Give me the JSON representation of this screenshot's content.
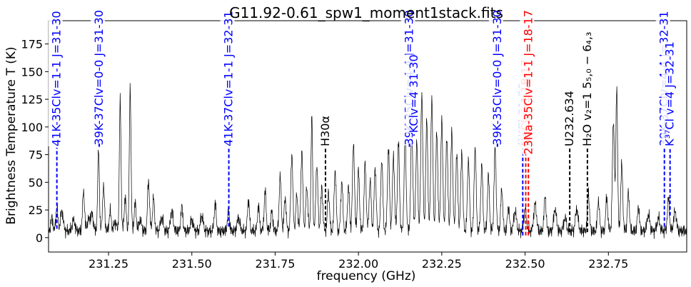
{
  "chart_data": {
    "type": "line",
    "title": "G11.92-0.61_spw1_moment1stack.fits",
    "xlabel": "frequency (GHz)",
    "ylabel": "Brightness Temperature T (K)",
    "xlim": [
      231.07,
      232.985
    ],
    "ylim": [
      -13,
      196
    ],
    "xticks": [
      231.25,
      231.5,
      231.75,
      232.0,
      232.25,
      232.5,
      232.75
    ],
    "xtick_labels": [
      "231.25",
      "231.50",
      "231.75",
      "232.00",
      "232.25",
      "232.50",
      "232.75"
    ],
    "yticks": [
      0,
      25,
      50,
      75,
      100,
      125,
      150,
      175
    ],
    "ytick_labels": [
      "0",
      "25",
      "50",
      "75",
      "100",
      "125",
      "150",
      "175"
    ],
    "grid": false,
    "series": [
      {
        "color": "#000000",
        "baseline": 6,
        "peaks": [
          [
            231.08,
            12,
            0.003
          ],
          [
            231.095,
            22,
            0.003
          ],
          [
            231.11,
            18,
            0.004
          ],
          [
            231.145,
            10,
            0.004
          ],
          [
            231.175,
            36,
            0.003
          ],
          [
            231.19,
            10,
            0.004
          ],
          [
            231.2,
            15,
            0.004
          ],
          [
            231.22,
            74,
            0.0025
          ],
          [
            231.235,
            40,
            0.003
          ],
          [
            231.255,
            18,
            0.003
          ],
          [
            231.27,
            8,
            0.004
          ],
          [
            231.285,
            118,
            0.0025
          ],
          [
            231.3,
            30,
            0.003
          ],
          [
            231.315,
            130,
            0.0025
          ],
          [
            231.33,
            25,
            0.003
          ],
          [
            231.345,
            10,
            0.004
          ],
          [
            231.37,
            45,
            0.003
          ],
          [
            231.385,
            30,
            0.003
          ],
          [
            231.41,
            12,
            0.004
          ],
          [
            231.44,
            18,
            0.004
          ],
          [
            231.47,
            22,
            0.003
          ],
          [
            231.5,
            10,
            0.004
          ],
          [
            231.53,
            14,
            0.004
          ],
          [
            231.57,
            25,
            0.003
          ],
          [
            231.61,
            18,
            0.003
          ],
          [
            231.64,
            12,
            0.004
          ],
          [
            231.67,
            28,
            0.003
          ],
          [
            231.7,
            22,
            0.003
          ],
          [
            231.72,
            36,
            0.003
          ],
          [
            231.74,
            18,
            0.003
          ],
          [
            231.765,
            50,
            0.003
          ],
          [
            231.78,
            30,
            0.003
          ],
          [
            231.8,
            70,
            0.003
          ],
          [
            231.815,
            32,
            0.003
          ],
          [
            231.83,
            72,
            0.003
          ],
          [
            231.845,
            40,
            0.003
          ],
          [
            231.86,
            103,
            0.0025
          ],
          [
            231.875,
            60,
            0.003
          ],
          [
            231.89,
            40,
            0.003
          ],
          [
            231.91,
            36,
            0.003
          ],
          [
            231.93,
            55,
            0.003
          ],
          [
            231.95,
            45,
            0.003
          ],
          [
            231.97,
            40,
            0.003
          ],
          [
            231.985,
            80,
            0.003
          ],
          [
            232.0,
            55,
            0.003
          ],
          [
            232.02,
            62,
            0.003
          ],
          [
            232.035,
            45,
            0.003
          ],
          [
            232.05,
            58,
            0.003
          ],
          [
            232.07,
            65,
            0.003
          ],
          [
            232.09,
            75,
            0.003
          ],
          [
            232.105,
            68,
            0.003
          ],
          [
            232.12,
            80,
            0.003
          ],
          [
            232.14,
            85,
            0.003
          ],
          [
            232.16,
            95,
            0.003
          ],
          [
            232.175,
            80,
            0.003
          ],
          [
            232.19,
            125,
            0.003
          ],
          [
            232.205,
            100,
            0.003
          ],
          [
            232.22,
            120,
            0.003
          ],
          [
            232.235,
            90,
            0.003
          ],
          [
            232.25,
            100,
            0.003
          ],
          [
            232.265,
            85,
            0.003
          ],
          [
            232.28,
            90,
            0.003
          ],
          [
            232.295,
            70,
            0.003
          ],
          [
            232.31,
            72,
            0.003
          ],
          [
            232.33,
            65,
            0.003
          ],
          [
            232.35,
            75,
            0.003
          ],
          [
            232.37,
            60,
            0.003
          ],
          [
            232.39,
            50,
            0.003
          ],
          [
            232.41,
            75,
            0.003
          ],
          [
            232.43,
            38,
            0.003
          ],
          [
            232.45,
            22,
            0.003
          ],
          [
            232.47,
            18,
            0.004
          ],
          [
            232.5,
            20,
            0.004
          ],
          [
            232.53,
            25,
            0.004
          ],
          [
            232.56,
            32,
            0.003
          ],
          [
            232.59,
            20,
            0.004
          ],
          [
            232.62,
            12,
            0.004
          ],
          [
            232.655,
            20,
            0.004
          ],
          [
            232.69,
            35,
            0.003
          ],
          [
            232.72,
            28,
            0.003
          ],
          [
            232.745,
            30,
            0.003
          ],
          [
            232.765,
            100,
            0.003
          ],
          [
            232.775,
            132,
            0.0025
          ],
          [
            232.79,
            60,
            0.003
          ],
          [
            232.81,
            35,
            0.003
          ],
          [
            232.84,
            22,
            0.003
          ],
          [
            232.87,
            15,
            0.004
          ],
          [
            232.9,
            12,
            0.004
          ],
          [
            232.93,
            30,
            0.003
          ],
          [
            232.95,
            18,
            0.004
          ]
        ]
      }
    ],
    "line_ids": [
      {
        "label": "41K-35Clv=1-1 J=31-30",
        "x": 231.095,
        "y": 8,
        "color": "#0000ff"
      },
      {
        "label": "39K-37Clv=0-0 J=31-30",
        "x": 231.222,
        "y": 85,
        "color": "#0000ff"
      },
      {
        "label": "41K-37Clv=1-1 J=32-31",
        "x": 231.611,
        "y": 10,
        "color": "#0000ff"
      },
      {
        "label": "H30α",
        "x": 231.901,
        "y": 10,
        "color": "#000000"
      },
      {
        "label": "39K-35Clv=4-4 J=31-30",
        "x": 232.153,
        "y": 85,
        "color": "#0000ff"
      },
      {
        "label": "KClv=4 31-30",
        "x": 232.167,
        "y": 92,
        "color": "#0000ff"
      },
      {
        "label": "39K-35Clv=0-0 J=31-30",
        "x": 232.417,
        "y": 85,
        "color": "#0000ff"
      },
      {
        "label": "⁴¹KCl 31-30",
        "x": 232.493,
        "y": 2,
        "color": "#0000ff"
      },
      {
        "label": "NaClv=1 18-17",
        "x": 232.502,
        "y": 2,
        "color": "#ff0000"
      },
      {
        "label": "23Na-35Clv=1-1 J=18-17",
        "x": 232.51,
        "y": 2,
        "color": "#ff0000"
      },
      {
        "label": "U232.634",
        "x": 232.634,
        "y": 5,
        "color": "#000000"
      },
      {
        "label": "H₂O v₂=1 5₅,₀ − 6₄,₃",
        "x": 232.687,
        "y": 5,
        "color": "#000000"
      },
      {
        "label": "39K-37Clv=4-4 J=32-31",
        "x": 232.918,
        "y": 10,
        "color": "#0000ff"
      },
      {
        "label": "K³⁷Cl v=4 J=32-31",
        "x": 232.935,
        "y": 20,
        "color": "#0000ff"
      }
    ]
  }
}
